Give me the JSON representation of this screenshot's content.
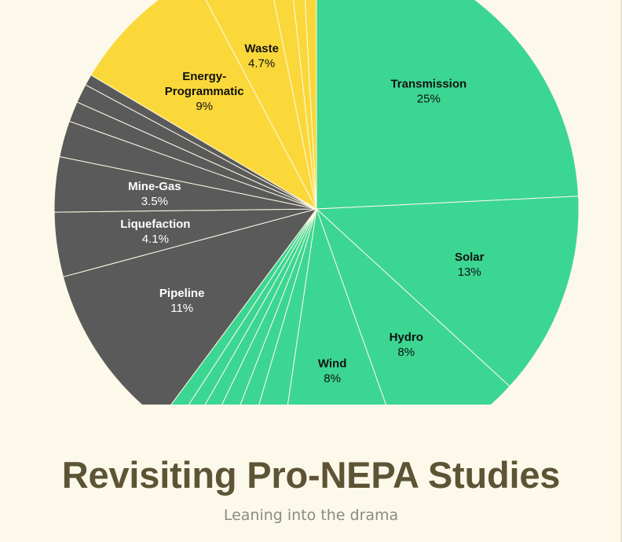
{
  "chart_data": {
    "type": "pie",
    "colors": {
      "clean": "#3bd692",
      "fossil": "#5a5a5a",
      "other": "#fbd83a",
      "label_dark": "#111111",
      "label_light": "#ffffff"
    },
    "slices": [
      {
        "name": "Transmission",
        "pct_label": "25%",
        "value": 25,
        "group": "clean"
      },
      {
        "name": "Solar",
        "pct_label": "13%",
        "value": 13,
        "group": "clean"
      },
      {
        "name": "Hydro",
        "pct_label": "8%",
        "value": 8,
        "group": "clean"
      },
      {
        "name": "Wind",
        "pct_label": "8%",
        "value": 8,
        "group": "clean"
      },
      {
        "name": "",
        "pct_label": "",
        "value": 2.3,
        "group": "clean"
      },
      {
        "name": "",
        "pct_label": "",
        "value": 1.4,
        "group": "clean"
      },
      {
        "name": "",
        "pct_label": "",
        "value": 1.3,
        "group": "clean"
      },
      {
        "name": "",
        "pct_label": "",
        "value": 1.1,
        "group": "clean"
      },
      {
        "name": "",
        "pct_label": "",
        "value": 1.0,
        "group": "clean"
      },
      {
        "name": "",
        "pct_label": "",
        "value": 1.0,
        "group": "clean"
      },
      {
        "name": "Pipeline",
        "pct_label": "11%",
        "value": 11,
        "group": "fossil"
      },
      {
        "name": "Liquefaction",
        "pct_label": "4.1%",
        "value": 4.1,
        "group": "fossil"
      },
      {
        "name": "Mine-Gas",
        "pct_label": "3.5%",
        "value": 3.5,
        "group": "fossil"
      },
      {
        "name": "",
        "pct_label": "",
        "value": 2.3,
        "group": "fossil"
      },
      {
        "name": "",
        "pct_label": "",
        "value": 1.3,
        "group": "fossil"
      },
      {
        "name": "",
        "pct_label": "",
        "value": 1.2,
        "group": "fossil"
      },
      {
        "name": "",
        "pct_label": "",
        "value": 0.7,
        "group": "fossil"
      },
      {
        "name": "Energy-Programmatic",
        "pct_label": "9%",
        "value": 9,
        "group": "other"
      },
      {
        "name": "Waste",
        "pct_label": "4.7%",
        "value": 4.7,
        "group": "other"
      },
      {
        "name": "",
        "pct_label": "",
        "value": 1.5,
        "group": "other"
      },
      {
        "name": "",
        "pct_label": "",
        "value": 0.9,
        "group": "other"
      },
      {
        "name": "",
        "pct_label": "",
        "value": 0.9,
        "group": "other"
      }
    ]
  },
  "hero": {
    "title": "Revisiting Pro-NEPA Studies",
    "subtitle": "Leaning into the drama"
  }
}
